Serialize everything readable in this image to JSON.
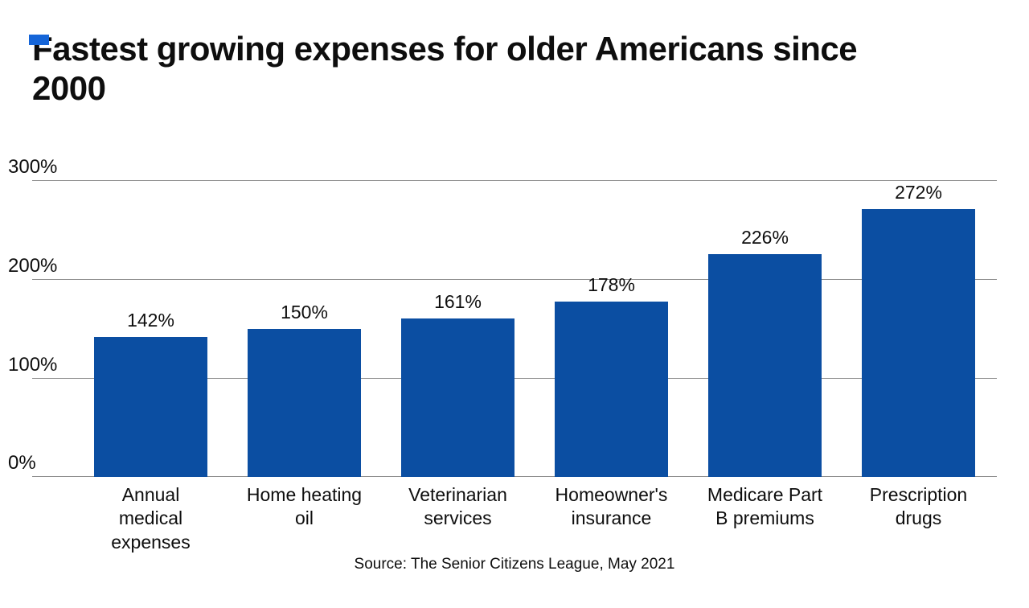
{
  "brand": {
    "mark_color": "#1565d8"
  },
  "header": {
    "title": "Fastest growing expenses for older Americans since 2000"
  },
  "chart_data": {
    "type": "bar",
    "title": "Fastest growing expenses for older Americans since 2000",
    "categories": [
      "Annual medical expenses",
      "Home heating oil",
      "Veterinarian services",
      "Homeowner's insurance",
      "Medicare Part B premiums",
      "Prescription drugs"
    ],
    "category_lines": [
      [
        "Annual",
        "medical",
        "expenses"
      ],
      [
        "Home heating",
        "oil"
      ],
      [
        "Veterinarian",
        "services"
      ],
      [
        "Homeowner's",
        "insurance"
      ],
      [
        "Medicare Part",
        "B premiums"
      ],
      [
        "Prescription",
        "drugs"
      ]
    ],
    "values": [
      142,
      150,
      161,
      178,
      226,
      272
    ],
    "value_labels": [
      "142%",
      "150%",
      "161%",
      "178%",
      "226%",
      "272%"
    ],
    "ylim": [
      0,
      300
    ],
    "yticks": [
      {
        "label": "0%",
        "value": 0
      },
      {
        "label": "100%",
        "value": 100
      },
      {
        "label": "200%",
        "value": 200
      },
      {
        "label": "300%",
        "value": 300
      }
    ],
    "grid": true,
    "legend": "none",
    "bar_color": "#0b4ea2",
    "gridline_color": "#8f8f8f",
    "source": "Source: The Senior Citizens League, May 2021"
  }
}
